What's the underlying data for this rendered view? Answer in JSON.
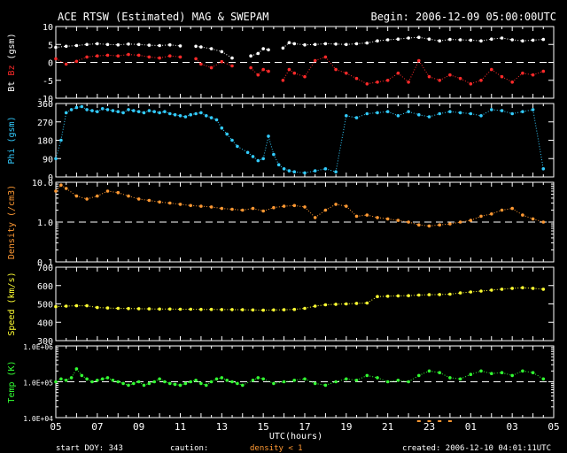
{
  "header": {
    "title": "ACE RTSW (Estimated) MAG & SWEPAM",
    "begin": "Begin: 2006-12-09 05:00:00UTC"
  },
  "footer": {
    "start_doy": "start DOY: 343",
    "caution_label": "caution:",
    "density_note": "density < 1",
    "created": "created: 2006-12-10 04:01:11UTC"
  },
  "colors": {
    "bt": "#ffffff",
    "bz": "#ff2a2a",
    "phi": "#33ccff",
    "density": "#ff9933",
    "speed": "#ffff33",
    "temp": "#33ff33",
    "frame": "#ffffff",
    "caution": "#ff9933"
  },
  "chart_data": [
    {
      "type": "scatter",
      "panel": "mag",
      "ylabel_parts": [
        "Bt",
        "Bz",
        "(gsm)"
      ],
      "ylim": [
        -10,
        10
      ],
      "yticks": [
        -10,
        -5,
        0,
        5,
        10
      ],
      "reference_line": 0,
      "x_unit": "UTC hours from 2006-12-09 05:00",
      "gaps": [
        [
          13.0,
          13.3
        ],
        [
          18.2,
          18.6
        ],
        [
          21.4,
          21.7
        ]
      ],
      "series": [
        {
          "name": "Bt",
          "color": "bt",
          "x": [
            0,
            1,
            2,
            3,
            4,
            5,
            6,
            7,
            8,
            9,
            10,
            11,
            12,
            13.5,
            14,
            15,
            16,
            17,
            18.8,
            19.5,
            20,
            20.5,
            21.9,
            22.5,
            23,
            24,
            25,
            26,
            27,
            28,
            29,
            30,
            31,
            32,
            33,
            34,
            35,
            36,
            37,
            38,
            39,
            40,
            41,
            42,
            43,
            44,
            45,
            46,
            47
          ],
          "y": [
            4.2,
            4.5,
            4.7,
            5.0,
            5.2,
            5.0,
            4.9,
            5.1,
            5.0,
            4.8,
            4.7,
            4.9,
            4.6,
            4.5,
            4.3,
            3.8,
            3.0,
            1.2,
            1.8,
            2.5,
            3.8,
            3.5,
            4.0,
            5.5,
            5.2,
            4.9,
            5.0,
            5.2,
            5.1,
            5.0,
            5.2,
            5.4,
            6.0,
            6.3,
            6.5,
            6.8,
            7.0,
            6.5,
            6.0,
            6.4,
            6.3,
            6.2,
            6.0,
            6.5,
            6.8,
            6.3,
            6.0,
            6.2,
            6.4
          ]
        },
        {
          "name": "Bz",
          "color": "bz",
          "x": [
            0,
            1,
            2,
            3,
            4,
            5,
            6,
            7,
            8,
            9,
            10,
            11,
            12,
            13.5,
            14,
            15,
            16,
            17,
            18.8,
            19.5,
            20,
            20.5,
            21.9,
            22.5,
            23,
            24,
            25,
            26,
            27,
            28,
            29,
            30,
            31,
            32,
            33,
            34,
            35,
            36,
            37,
            38,
            39,
            40,
            41,
            42,
            43,
            44,
            45,
            46,
            47
          ],
          "y": [
            1.0,
            -0.5,
            0.3,
            1.5,
            1.8,
            2.0,
            1.8,
            2.2,
            2.0,
            1.5,
            1.2,
            1.8,
            1.5,
            1.0,
            -0.5,
            -1.5,
            0.2,
            -1.0,
            -1.5,
            -3.5,
            -2.0,
            -2.5,
            -5.0,
            -2.0,
            -3.0,
            -4.0,
            0.5,
            1.5,
            -2.0,
            -3.0,
            -4.5,
            -6.0,
            -5.5,
            -5.0,
            -3.0,
            -5.5,
            0.5,
            -4.0,
            -5.0,
            -3.5,
            -4.5,
            -6.0,
            -5.0,
            -2.0,
            -4.0,
            -5.5,
            -3.0,
            -3.5,
            -2.5
          ]
        }
      ]
    },
    {
      "type": "scatter",
      "panel": "phi",
      "ylabel_parts": [
        "Phi",
        "(gsm)"
      ],
      "ylim": [
        0,
        360
      ],
      "yticks": [
        0,
        90,
        180,
        270,
        360
      ],
      "series": [
        {
          "name": "Phi",
          "color": "phi",
          "x": [
            0,
            0.5,
            1,
            1.5,
            2,
            2.5,
            3,
            3.5,
            4,
            4.5,
            5,
            5.5,
            6,
            6.5,
            7,
            7.5,
            8,
            8.5,
            9,
            9.5,
            10,
            10.5,
            11,
            11.5,
            12,
            12.5,
            13,
            13.5,
            14,
            14.5,
            15,
            15.5,
            16,
            16.5,
            17,
            17.5,
            18.5,
            19,
            19.5,
            20,
            20.5,
            21,
            21.5,
            22,
            22.5,
            23,
            24,
            25,
            26,
            27,
            28,
            29,
            30,
            31,
            32,
            33,
            34,
            35,
            36,
            37,
            38,
            39,
            40,
            41,
            42,
            43,
            44,
            45,
            46,
            47
          ],
          "y": [
            90,
            180,
            315,
            330,
            340,
            345,
            330,
            325,
            320,
            335,
            330,
            325,
            320,
            315,
            330,
            325,
            320,
            315,
            325,
            320,
            315,
            320,
            310,
            305,
            300,
            295,
            305,
            310,
            315,
            300,
            290,
            280,
            240,
            210,
            180,
            150,
            120,
            100,
            80,
            90,
            200,
            110,
            60,
            40,
            30,
            25,
            20,
            30,
            40,
            25,
            300,
            290,
            310,
            315,
            320,
            300,
            320,
            305,
            295,
            310,
            320,
            315,
            310,
            300,
            330,
            325,
            310,
            320,
            330,
            40
          ]
        }
      ]
    },
    {
      "type": "scatter",
      "panel": "density",
      "ylabel_parts": [
        "Density",
        "(/cm3)"
      ],
      "yscale": "log",
      "ylim": [
        0.1,
        10
      ],
      "ytick_labels": [
        "10.0",
        "1.0",
        "0.1"
      ],
      "reference_line": 1,
      "series": [
        {
          "name": "Density",
          "color": "density",
          "x": [
            0,
            0.5,
            1,
            2,
            3,
            4,
            5,
            6,
            7,
            8,
            9,
            10,
            11,
            12,
            13,
            14,
            15,
            16,
            17,
            18,
            19,
            20,
            21,
            22,
            23,
            24,
            25,
            26,
            27,
            28,
            29,
            30,
            31,
            32,
            33,
            34,
            35,
            36,
            37,
            38,
            39,
            40,
            41,
            42,
            43,
            44,
            45,
            46,
            47
          ],
          "y": [
            6.0,
            8.5,
            7.0,
            4.5,
            3.8,
            4.5,
            6.0,
            5.5,
            4.5,
            3.8,
            3.5,
            3.2,
            3.0,
            2.8,
            2.6,
            2.5,
            2.4,
            2.2,
            2.1,
            2.0,
            2.2,
            1.9,
            2.3,
            2.5,
            2.6,
            2.4,
            1.3,
            2.0,
            2.8,
            2.5,
            1.4,
            1.5,
            1.3,
            1.2,
            1.1,
            1.0,
            0.85,
            0.8,
            0.85,
            0.9,
            1.0,
            1.1,
            1.4,
            1.6,
            2.0,
            2.2,
            1.5,
            1.2,
            1.0
          ]
        }
      ]
    },
    {
      "type": "scatter",
      "panel": "speed",
      "ylabel_parts": [
        "Speed",
        "(km/s)"
      ],
      "ylim": [
        300,
        700
      ],
      "yticks": [
        300,
        400,
        500,
        600,
        700
      ],
      "series": [
        {
          "name": "Speed",
          "color": "speed",
          "x": [
            0,
            1,
            2,
            3,
            4,
            5,
            6,
            7,
            8,
            9,
            10,
            11,
            12,
            13,
            14,
            15,
            16,
            17,
            18,
            19,
            20,
            21,
            22,
            23,
            24,
            25,
            26,
            27,
            28,
            29,
            30,
            31,
            32,
            33,
            34,
            35,
            36,
            37,
            38,
            39,
            40,
            41,
            42,
            43,
            44,
            45,
            46,
            47
          ],
          "y": [
            485,
            488,
            490,
            490,
            480,
            478,
            476,
            475,
            474,
            473,
            472,
            472,
            471,
            471,
            470,
            470,
            469,
            469,
            468,
            467,
            466,
            467,
            468,
            470,
            476,
            488,
            495,
            498,
            500,
            503,
            505,
            540,
            542,
            544,
            545,
            548,
            550,
            551,
            553,
            560,
            565,
            570,
            575,
            580,
            585,
            588,
            585,
            580
          ]
        }
      ]
    },
    {
      "type": "scatter",
      "panel": "temp",
      "ylabel_parts": [
        "Temp",
        "(K)"
      ],
      "yscale": "log",
      "ylim": [
        10000,
        1000000
      ],
      "ytick_labels": [
        "1.0E+06",
        "1.0E+05",
        "1.0E+04"
      ],
      "reference_line": 100000,
      "series": [
        {
          "name": "Temp",
          "color": "temp",
          "x": [
            0,
            0.5,
            1,
            1.5,
            2,
            2.5,
            3,
            3.5,
            4,
            4.5,
            5,
            5.5,
            6,
            6.5,
            7,
            7.5,
            8,
            8.5,
            9,
            9.5,
            10,
            10.5,
            11,
            11.5,
            12,
            12.5,
            13,
            13.5,
            14,
            14.5,
            15,
            15.5,
            16,
            16.5,
            17,
            17.5,
            18,
            19,
            19.5,
            20,
            21,
            22,
            23,
            24,
            25,
            26,
            27,
            28,
            29,
            30,
            31,
            32,
            33,
            34,
            35,
            36,
            37,
            38,
            39,
            40,
            41,
            42,
            43,
            44,
            45,
            46,
            47
          ],
          "y": [
            100000,
            120000,
            110000,
            130000,
            230000,
            150000,
            120000,
            100000,
            110000,
            120000,
            130000,
            110000,
            100000,
            90000,
            80000,
            90000,
            100000,
            80000,
            90000,
            100000,
            120000,
            100000,
            90000,
            85000,
            80000,
            90000,
            100000,
            110000,
            90000,
            80000,
            100000,
            120000,
            130000,
            110000,
            100000,
            90000,
            80000,
            110000,
            130000,
            120000,
            90000,
            100000,
            110000,
            120000,
            90000,
            80000,
            100000,
            120000,
            110000,
            150000,
            130000,
            100000,
            110000,
            100000,
            150000,
            200000,
            180000,
            130000,
            120000,
            160000,
            200000,
            170000,
            180000,
            150000,
            200000,
            180000,
            120000
          ]
        }
      ]
    }
  ],
  "x_axis": {
    "label": "UTC(hours)",
    "tick_labels": [
      "05",
      "07",
      "09",
      "11",
      "13",
      "15",
      "17",
      "19",
      "21",
      "23",
      "01",
      "03",
      "05"
    ],
    "range_hours": [
      0,
      48
    ]
  }
}
